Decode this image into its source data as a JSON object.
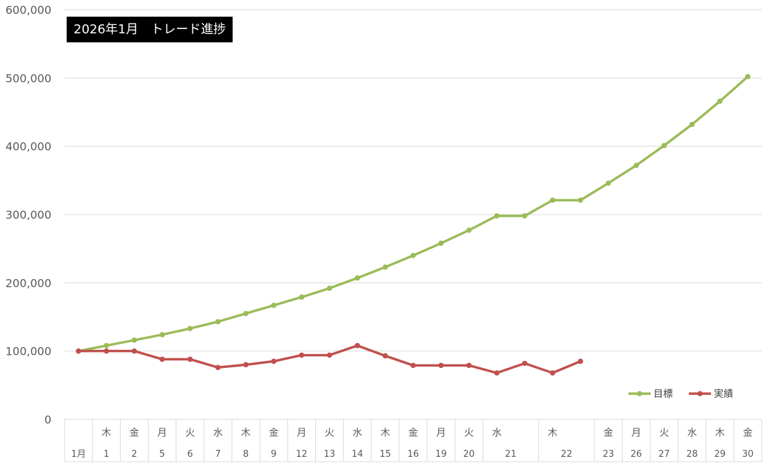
{
  "chart_data": {
    "type": "line",
    "title": "2026年1月　トレード進捗",
    "xlabel": "",
    "ylabel": "",
    "ylim": [
      0,
      600000
    ],
    "y_ticks": [
      "0",
      "100,000",
      "200,000",
      "300,000",
      "400,000",
      "500,000",
      "600,000"
    ],
    "grid": true,
    "legend_position": "bottom-right",
    "x_axis": {
      "month_label": "1月",
      "weekdays": [
        "木",
        "金",
        "月",
        "火",
        "水",
        "木",
        "金",
        "月",
        "火",
        "水",
        "木",
        "金",
        "月",
        "火",
        "水",
        "木",
        "金",
        "月",
        "火",
        "水",
        "木",
        "金"
      ],
      "days": [
        "1",
        "2",
        "5",
        "6",
        "7",
        "8",
        "9",
        "12",
        "13",
        "14",
        "15",
        "16",
        "19",
        "20",
        "21",
        "22",
        "23",
        "26",
        "27",
        "28",
        "29",
        "30"
      ]
    },
    "categories": [
      "1月",
      "1",
      "2",
      "5",
      "6",
      "7",
      "8",
      "9",
      "12",
      "13",
      "14",
      "15",
      "16",
      "19",
      "20",
      "21",
      "21",
      "22",
      "22",
      "23",
      "26",
      "27",
      "28",
      "29",
      "30"
    ],
    "series": [
      {
        "name": "目標",
        "color": "#9BBB59",
        "values": [
          100000,
          108000,
          116000,
          124000,
          133000,
          143000,
          155000,
          167000,
          179000,
          192000,
          207000,
          223000,
          240000,
          258000,
          277000,
          298000,
          298000,
          321000,
          321000,
          346000,
          372000,
          401000,
          432000,
          466000,
          502000
        ]
      },
      {
        "name": "実績",
        "color": "#C0504D",
        "values": [
          100000,
          100000,
          100000,
          88000,
          88000,
          76000,
          80000,
          85000,
          94000,
          94000,
          108000,
          93000,
          79000,
          79000,
          79000,
          68000,
          82000,
          68000,
          85000,
          null,
          null,
          null,
          null,
          null,
          null
        ]
      }
    ]
  }
}
